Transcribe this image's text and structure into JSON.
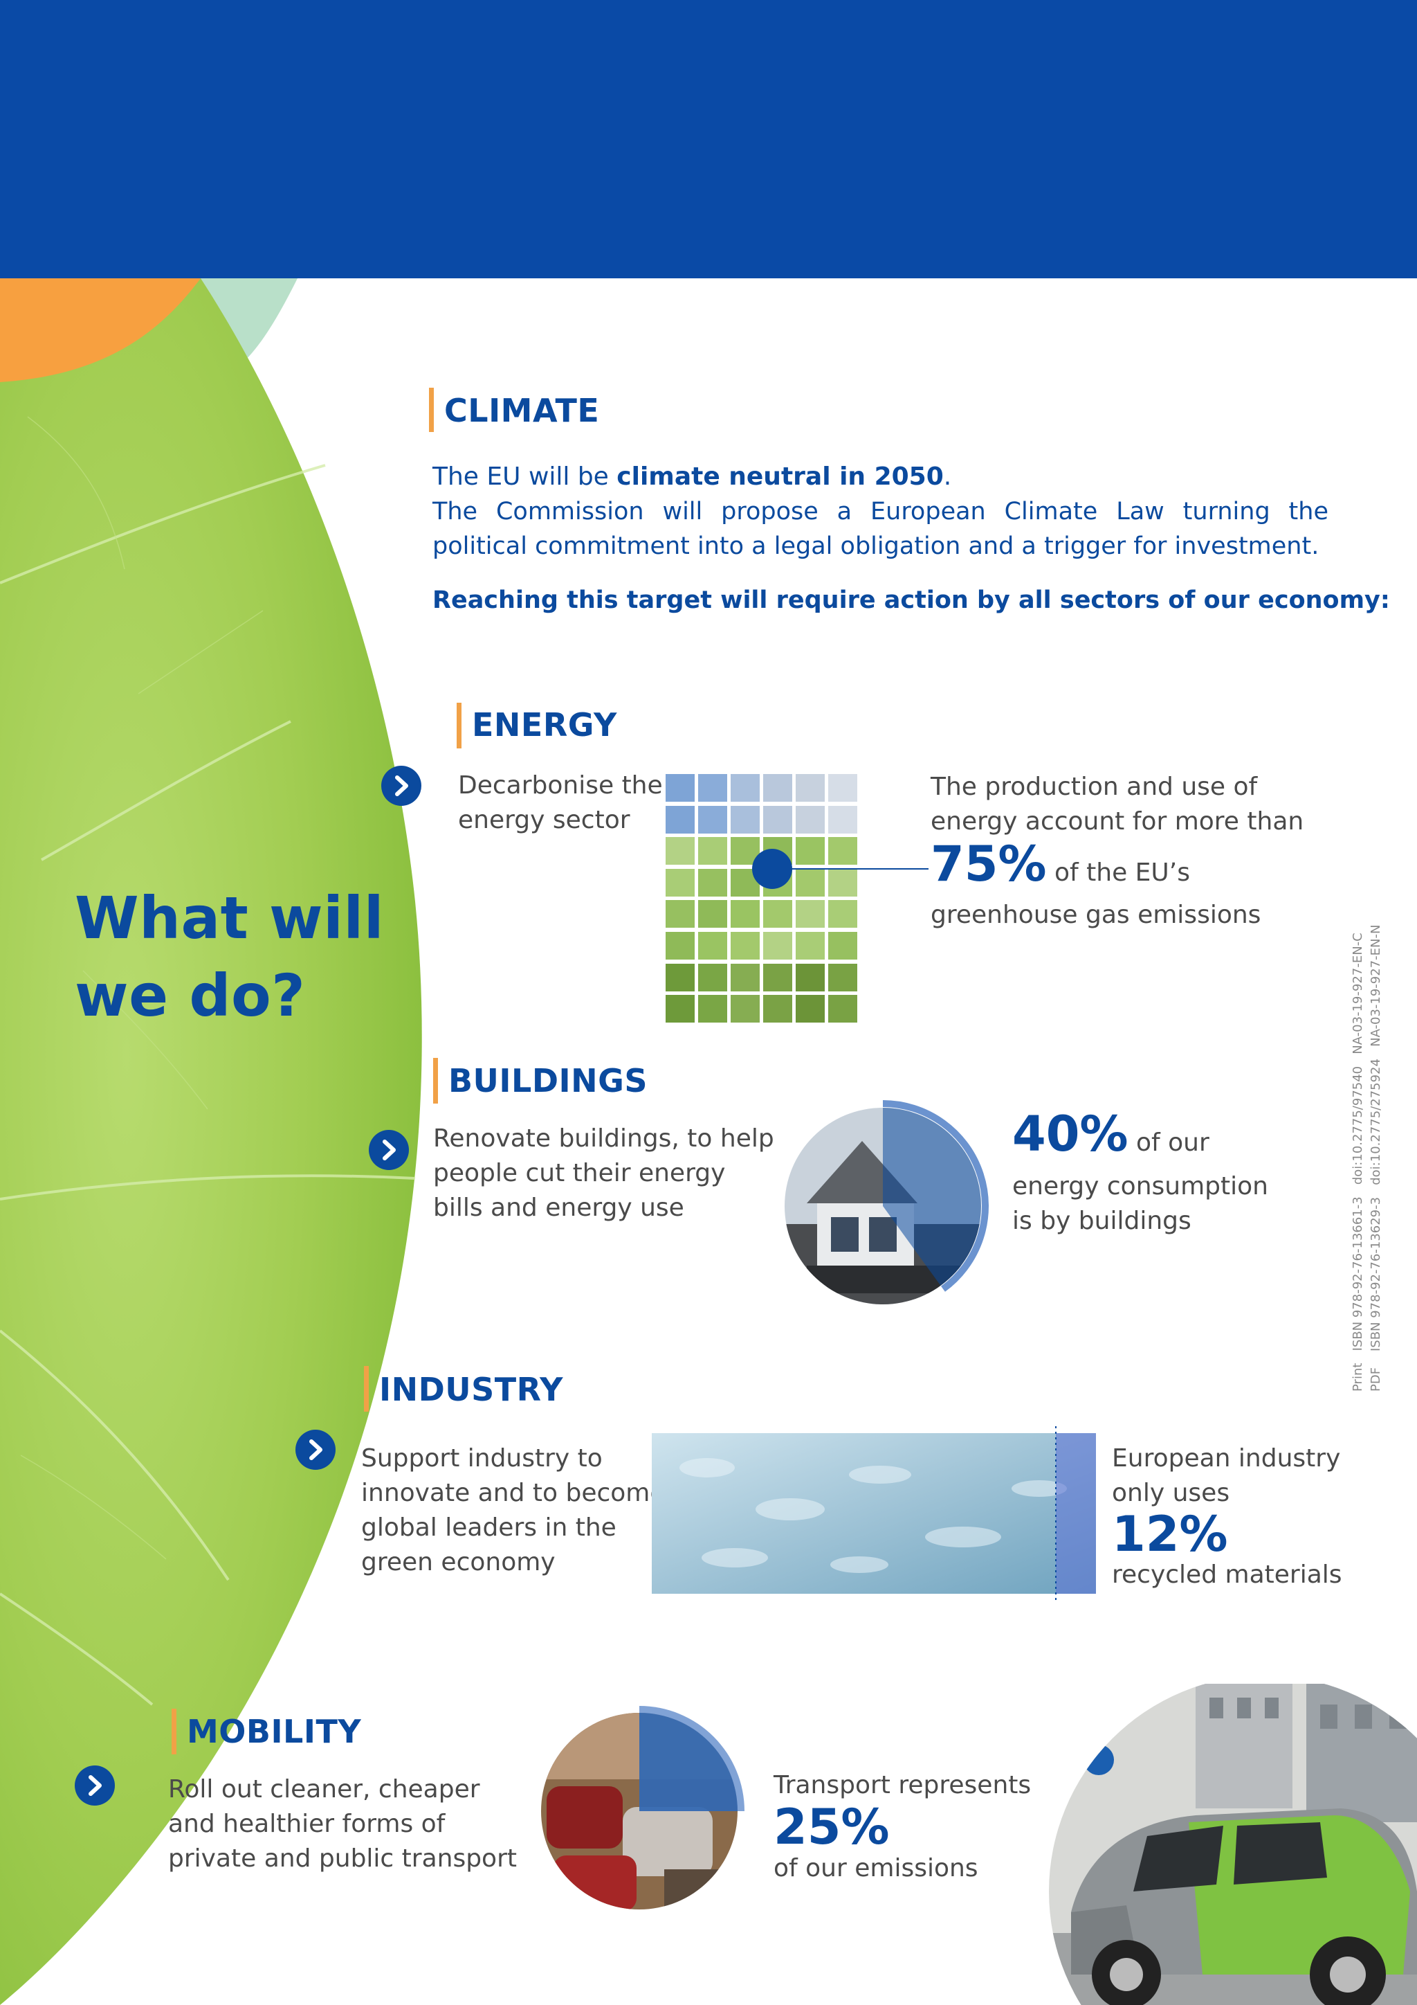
{
  "header": {
    "band_color": "#0a4aa6"
  },
  "colors": {
    "accent_orange": "#f1a147",
    "brand_blue": "#0b4a9e",
    "leaf_green": "#a6d05a"
  },
  "leaf_title": {
    "line1": "What will",
    "line2": "we do?"
  },
  "climate": {
    "title": "CLIMATE",
    "intro_prefix": "The EU will be ",
    "intro_bold": "climate neutral in 2050",
    "intro_suffix": ".",
    "body": "The Commission will propose a European Climate Law turning the political commitment into a legal obligation and a trigger for investment.",
    "call_to_action": "Reaching this target will require action by all sectors of our economy:"
  },
  "energy": {
    "title": "ENERGY",
    "action_line1": "Decarbonise the",
    "action_line2": "energy sector",
    "fact_line1": "The production and use of",
    "fact_line2": "energy account for more than",
    "stat": "75%",
    "stat_suffix": "of the EU’s",
    "fact_line4": "greenhouse gas emissions",
    "stat_value": 75
  },
  "buildings": {
    "title": "BUILDINGS",
    "action_line1": "Renovate buildings, to help",
    "action_line2": "people cut their energy",
    "action_line3": "bills and energy use",
    "stat": "40%",
    "stat_suffix": "of our",
    "fact_line2": "energy consumption",
    "fact_line3": "is by buildings",
    "stat_value": 40
  },
  "industry": {
    "title": "INDUSTRY",
    "action_line1": "Support industry to",
    "action_line2": "innovate and to become",
    "action_line3": "global leaders in the",
    "action_line4": "green economy",
    "fact_line1": "European industry",
    "fact_line2": "only uses",
    "stat": "12%",
    "fact_line4": "recycled materials",
    "stat_value": 12
  },
  "mobility": {
    "title": "MOBILITY",
    "action_line1": "Roll out cleaner, cheaper",
    "action_line2": "and healthier forms of",
    "action_line3": "private and public transport",
    "fact_line1": "Transport represents",
    "stat": "25%",
    "fact_line3": "of our emissions",
    "stat_value": 25
  },
  "side_identifiers": {
    "line1": "Print   ISBN 978-92-76-13661-3   doi:10.2775/97540   NA-03-19-927-EN-C",
    "line2": "PDF    ISBN 978-92-76-13629-3   doi:10.2775/275924   NA-03-19-927-EN-N"
  }
}
